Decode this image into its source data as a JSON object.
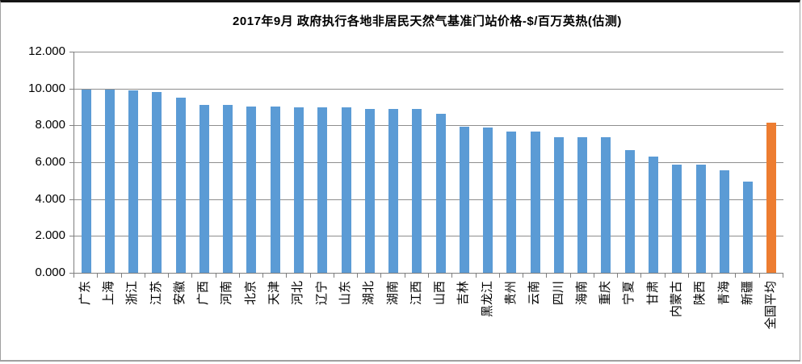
{
  "frame": {
    "top_border_color": "#151515",
    "side_border_color": "#a0a0a0",
    "background": "#ffffff"
  },
  "chart_data": {
    "type": "bar",
    "title": "2017年9月 政府执行各地非居民天然气基准门站价格-$/百万英热(估测)",
    "xlabel": "",
    "ylabel": "",
    "ylim": [
      0,
      12
    ],
    "ytick_step": 2,
    "ytick_labels": [
      "0.000",
      "2.000",
      "4.000",
      "6.000",
      "8.000",
      "10.000",
      "12.000"
    ],
    "grid": true,
    "legend": "none",
    "gridline_color": "#8e8e8e",
    "axis_color": "#7f7f7f",
    "bar_color": "#5B9BD5",
    "highlight_color": "#ED7D31",
    "highlight_category": "全国平均",
    "categories": [
      "广东",
      "上海",
      "浙江",
      "江苏",
      "安徽",
      "广西",
      "河南",
      "北京",
      "天津",
      "河北",
      "辽宁",
      "山东",
      "湖北",
      "湖南",
      "江西",
      "山西",
      "吉林",
      "黑龙江",
      "贵州",
      "云南",
      "四川",
      "海南",
      "重庆",
      "宁夏",
      "甘肃",
      "内蒙古",
      "陕西",
      "青海",
      "新疆",
      "全国平均"
    ],
    "values": [
      9.95,
      9.94,
      9.88,
      9.82,
      9.5,
      9.1,
      9.09,
      9.03,
      9.02,
      8.97,
      8.97,
      8.96,
      8.88,
      8.88,
      8.87,
      8.62,
      7.91,
      7.9,
      7.67,
      7.66,
      7.35,
      7.35,
      7.34,
      6.67,
      6.32,
      5.89,
      5.88,
      5.56,
      4.95,
      8.13
    ]
  }
}
